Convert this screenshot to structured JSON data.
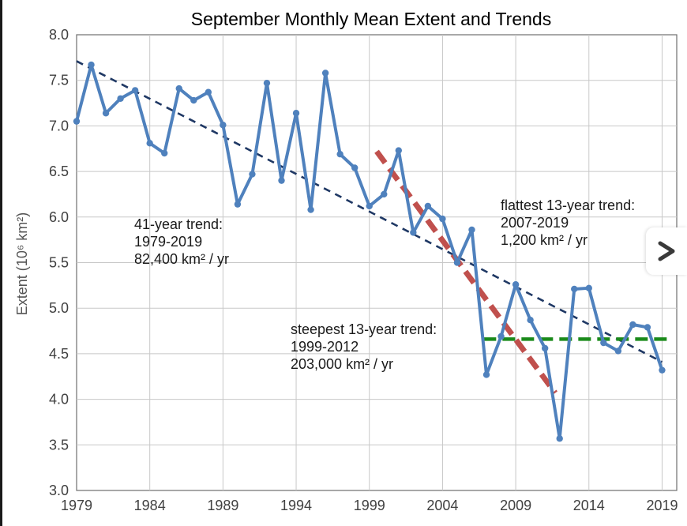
{
  "chart_data": {
    "type": "line",
    "title": "September Monthly Mean Extent and Trends",
    "ylabel": "Extent (10⁶ km²)",
    "xlabel": "",
    "xlim": [
      1979,
      2020
    ],
    "ylim": [
      3.0,
      8.0
    ],
    "grid": true,
    "x_ticks": [
      "1979",
      "1984",
      "1989",
      "1994",
      "1999",
      "2004",
      "2009",
      "2014",
      "2019"
    ],
    "y_ticks": [
      "3.0",
      "3.5",
      "4.0",
      "4.5",
      "5.0",
      "5.5",
      "6.0",
      "6.5",
      "7.0",
      "7.5",
      "8.0"
    ],
    "series": [
      {
        "color": "#4f81bd",
        "x": [
          1979,
          1980,
          1981,
          1982,
          1983,
          1984,
          1985,
          1986,
          1987,
          1988,
          1989,
          1990,
          1991,
          1992,
          1993,
          1994,
          1995,
          1996,
          1997,
          1998,
          1999,
          2000,
          2001,
          2002,
          2003,
          2004,
          2005,
          2006,
          2007,
          2008,
          2009,
          2010,
          2011,
          2012,
          2013,
          2014,
          2015,
          2016,
          2017,
          2018,
          2019
        ],
        "values": [
          7.05,
          7.67,
          7.14,
          7.3,
          7.39,
          6.81,
          6.7,
          7.41,
          7.28,
          7.37,
          7.01,
          6.14,
          6.47,
          7.47,
          6.4,
          7.14,
          6.08,
          7.58,
          6.69,
          6.54,
          6.12,
          6.25,
          6.73,
          5.83,
          6.12,
          5.98,
          5.5,
          5.86,
          4.27,
          4.69,
          5.26,
          4.87,
          4.56,
          3.57,
          5.21,
          5.22,
          4.62,
          4.53,
          4.82,
          4.79,
          4.32
        ]
      }
    ],
    "trends": [
      {
        "color": "#1f3864",
        "style": "dashed",
        "from": [
          1979,
          7.71
        ],
        "to": [
          2019,
          4.41
        ],
        "label_lines": [
          "41-year trend:",
          "1979-2019",
          "82,400 km² / yr"
        ]
      },
      {
        "color": "#c0504d",
        "style": "dashed",
        "from": [
          1999.5,
          6.72
        ],
        "to": [
          2011.7,
          4.07
        ],
        "label_lines": [
          "steepest 13-year trend:",
          "1999-2012",
          "203,000 km² / yr"
        ]
      },
      {
        "color": "#1a8a1a",
        "style": "dashed",
        "from": [
          2006.8,
          4.66
        ],
        "to": [
          2019.5,
          4.66
        ],
        "label_lines": [
          "flattest 13-year trend:",
          "2007-2019",
          "1,200 km² / yr"
        ]
      }
    ]
  },
  "navigation": {
    "next_icon": "chevron-right-icon"
  }
}
